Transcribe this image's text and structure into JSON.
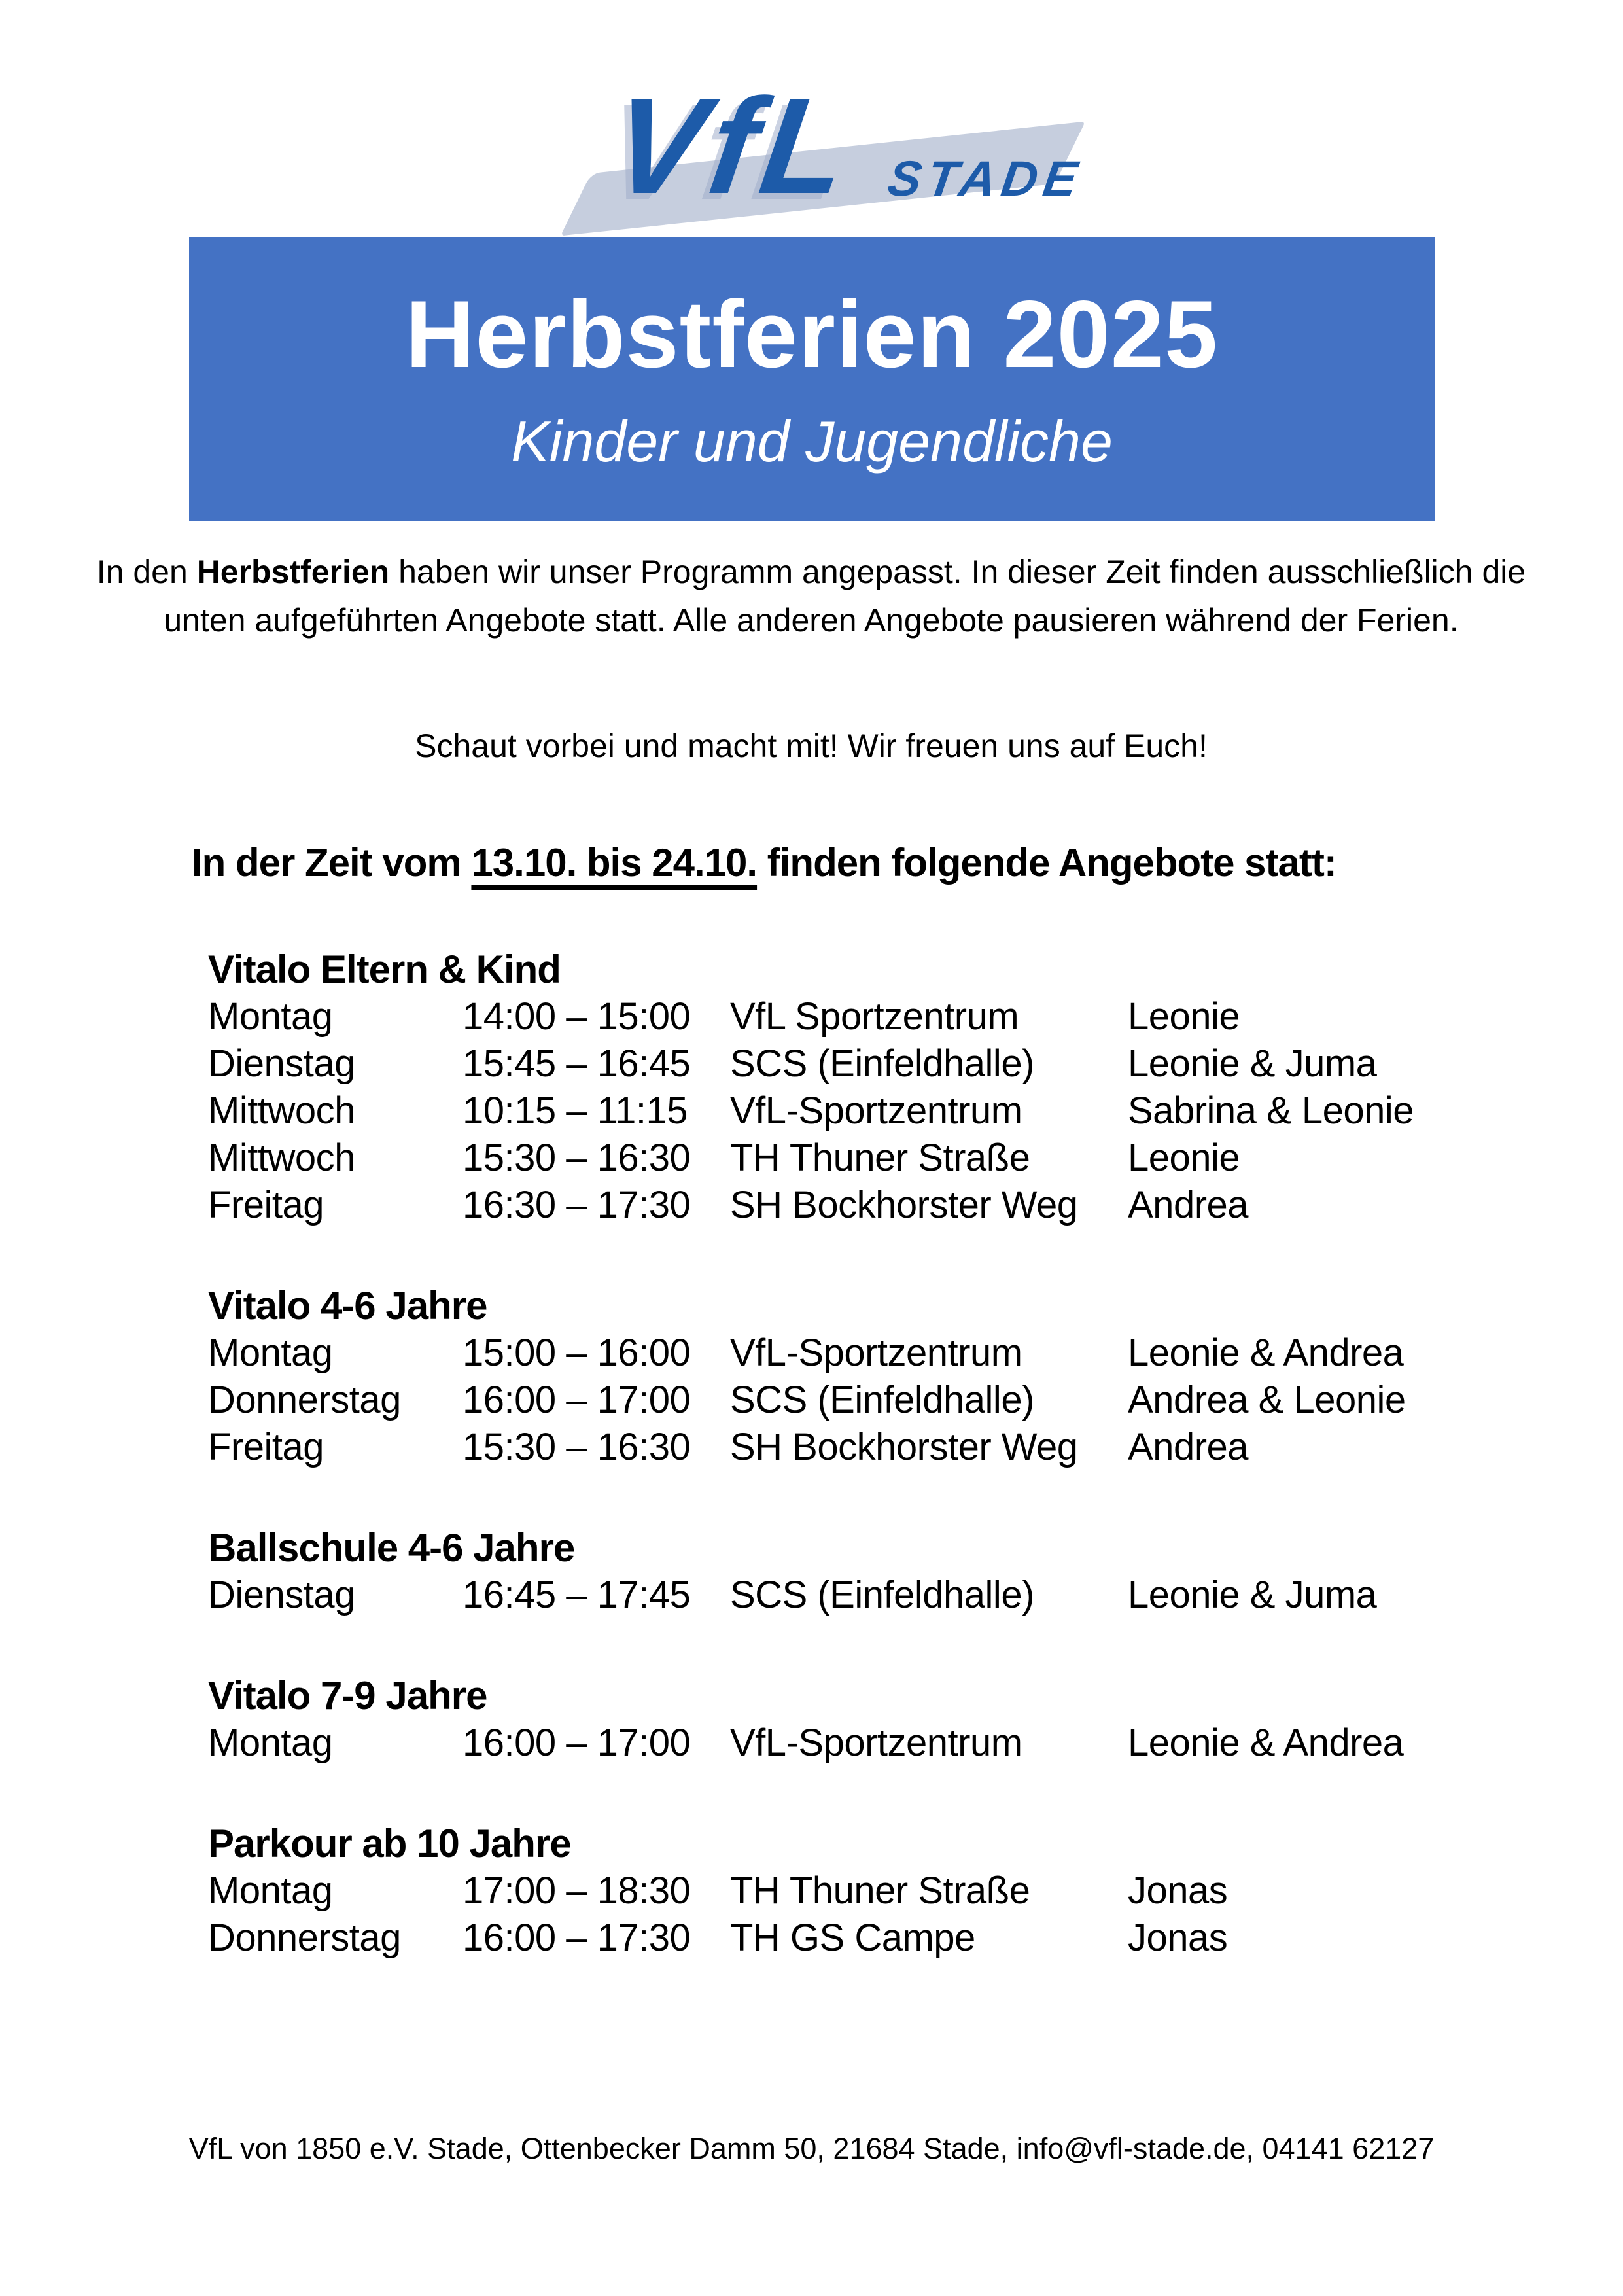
{
  "logo": {
    "vfl": "VfL",
    "stade": "STADE"
  },
  "banner": {
    "title": "Herbstferien 2025",
    "subtitle": "Kinder und Jugendliche"
  },
  "intro": {
    "p1_pre": "In den ",
    "p1_bold": "Herbstferien",
    "p1_post": " haben wir unser Programm angepasst. In dieser Zeit finden ausschließlich die unten aufgeführten Angebote statt. Alle anderen Angebote pausieren während der Ferien.",
    "p2": "Schaut vorbei und macht mit! Wir freuen uns auf Euch!"
  },
  "heading": {
    "pre": "In der Zeit vom ",
    "underlined": "13.10. bis 24.10.",
    "post": " finden folgende Angebote statt:"
  },
  "sections": [
    {
      "title": "Vitalo Eltern & Kind",
      "rows": [
        {
          "day": "Montag",
          "time": "14:00 – 15:00",
          "location": "VfL Sportzentrum",
          "trainer": "Leonie"
        },
        {
          "day": "Dienstag",
          "time": "15:45 – 16:45",
          "location": "SCS (Einfeldhalle)",
          "trainer": "Leonie & Juma"
        },
        {
          "day": "Mittwoch",
          "time": "10:15 – 11:15",
          "location": "VfL-Sportzentrum",
          "trainer": "Sabrina & Leonie"
        },
        {
          "day": "Mittwoch",
          "time": "15:30 – 16:30",
          "location": "TH Thuner Straße",
          "trainer": "Leonie"
        },
        {
          "day": "Freitag",
          "time": "16:30 – 17:30",
          "location": "SH Bockhorster Weg",
          "trainer": "Andrea"
        }
      ]
    },
    {
      "title": "Vitalo 4-6 Jahre",
      "rows": [
        {
          "day": "Montag",
          "time": "15:00 – 16:00",
          "location": "VfL-Sportzentrum",
          "trainer": "Leonie & Andrea"
        },
        {
          "day": "Donnerstag",
          "time": "16:00 – 17:00",
          "location": "SCS (Einfeldhalle)",
          "trainer": "Andrea & Leonie"
        },
        {
          "day": "Freitag",
          "time": "15:30 – 16:30",
          "location": "SH Bockhorster Weg",
          "trainer": "Andrea"
        }
      ]
    },
    {
      "title": "Ballschule 4-6 Jahre",
      "rows": [
        {
          "day": "Dienstag",
          "time": "16:45 – 17:45",
          "location": "SCS (Einfeldhalle)",
          "trainer": "Leonie & Juma"
        }
      ]
    },
    {
      "title": "Vitalo 7-9 Jahre",
      "rows": [
        {
          "day": "Montag",
          "time": "16:00 – 17:00",
          "location": "VfL-Sportzentrum",
          "trainer": "Leonie & Andrea"
        }
      ]
    },
    {
      "title": "Parkour ab 10 Jahre",
      "rows": [
        {
          "day": "Montag",
          "time": "17:00 – 18:30",
          "location": "TH Thuner Straße",
          "trainer": "Jonas"
        },
        {
          "day": "Donnerstag",
          "time": "16:00 – 17:30",
          "location": "TH GS Campe",
          "trainer": "Jonas"
        }
      ]
    }
  ],
  "footer": {
    "text": "VfL von 1850 e.V. Stade, Ottenbecker Damm 50, 21684 Stade, info@vfl-stade.de, 04141 62127"
  },
  "colors": {
    "banner_bg": "#4472c4",
    "logo_blue": "#1d5ba9",
    "logo_swoosh": "#c6cede",
    "text": "#000000"
  }
}
